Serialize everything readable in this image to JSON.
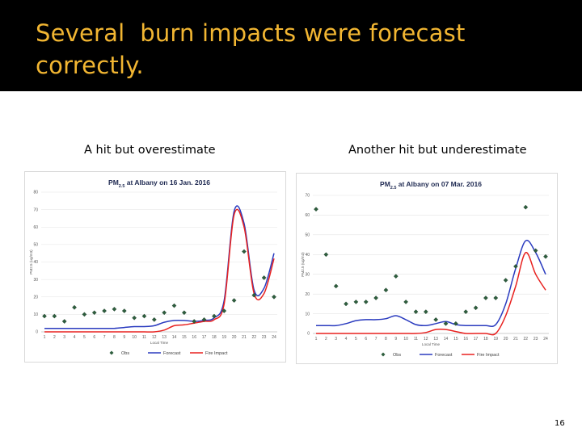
{
  "slide": {
    "title_line1": "Several  burn impacts were forecast",
    "title_line2": "correctly.",
    "page_number": "16",
    "colors": {
      "title_bar": "#000000",
      "title_text": "#f2b632",
      "obs": "#2e5e3e",
      "forecast": "#2a3bbf",
      "fire": "#e8211f"
    }
  },
  "captions": {
    "left": "A hit but overestimate",
    "right": "Another hit but underestimate"
  },
  "chart_data": [
    {
      "type": "line",
      "title_prefix": "PM",
      "title_sub": "2.5",
      "title_suffix": " at Albany on 16 Jan. 2016",
      "xlabel": "Local Time",
      "ylabel": "PM2.5 (ug/m3)",
      "ylim": [
        0,
        80
      ],
      "yticks": [
        0,
        10,
        20,
        30,
        40,
        50,
        60,
        70,
        80
      ],
      "x": [
        1,
        2,
        3,
        4,
        5,
        6,
        7,
        8,
        9,
        10,
        11,
        12,
        13,
        14,
        15,
        16,
        17,
        18,
        19,
        20,
        21,
        22,
        23,
        24
      ],
      "legend": [
        "Obs",
        "Forecast",
        "Fire Impact"
      ],
      "series": [
        {
          "name": "Obs",
          "kind": "scatter",
          "values": [
            9,
            9,
            6,
            14,
            10,
            11,
            12,
            13,
            12,
            8,
            9,
            7,
            11,
            15,
            11,
            6,
            7,
            9,
            12,
            18,
            46,
            21,
            31,
            20
          ]
        },
        {
          "name": "Forecast",
          "kind": "line",
          "values": [
            2,
            2,
            2,
            2,
            2,
            2,
            2,
            2,
            2.5,
            3,
            3,
            3.5,
            5.5,
            6.5,
            6.5,
            6,
            6.5,
            8,
            18,
            69,
            62,
            24,
            25,
            45
          ]
        },
        {
          "name": "Fire Impact",
          "kind": "line",
          "values": [
            0,
            0,
            0,
            0,
            0,
            0,
            0,
            0,
            0,
            0,
            0,
            0,
            1,
            3.5,
            4,
            5,
            6,
            7,
            16,
            67,
            60,
            22,
            22,
            42
          ]
        }
      ]
    },
    {
      "type": "line",
      "title_prefix": "PM",
      "title_sub": "2.5",
      "title_suffix": " at Albany on 07 Mar. 2016",
      "xlabel": "Local Time",
      "ylabel": "PM2.5 (ug/m3)",
      "ylim": [
        0,
        70
      ],
      "yticks": [
        0,
        10,
        20,
        30,
        40,
        50,
        60,
        70
      ],
      "x": [
        1,
        2,
        3,
        4,
        5,
        6,
        7,
        8,
        9,
        10,
        11,
        12,
        13,
        14,
        15,
        16,
        17,
        18,
        19,
        20,
        21,
        22,
        23,
        24
      ],
      "legend": [
        "Obs",
        "Forecast",
        "Fire Impact"
      ],
      "series": [
        {
          "name": "Obs",
          "kind": "scatter",
          "values": [
            63,
            40,
            24,
            15,
            16,
            16,
            18,
            22,
            29,
            16,
            11,
            11,
            7,
            5,
            5,
            11,
            13,
            18,
            18,
            27,
            34,
            64,
            42,
            39
          ]
        },
        {
          "name": "Forecast",
          "kind": "line",
          "values": [
            4,
            4,
            4,
            5,
            6.5,
            7,
            7,
            7.5,
            9,
            7,
            4.5,
            4,
            5,
            6,
            4.5,
            4,
            4,
            4,
            4.5,
            15,
            33,
            47,
            41,
            30
          ]
        },
        {
          "name": "Fire Impact",
          "kind": "line",
          "values": [
            0,
            0,
            0,
            0,
            0,
            0,
            0,
            0,
            0,
            0,
            0,
            0.5,
            2,
            2,
            1,
            0,
            0,
            0,
            0,
            9,
            24,
            41,
            30,
            22
          ]
        }
      ]
    }
  ]
}
